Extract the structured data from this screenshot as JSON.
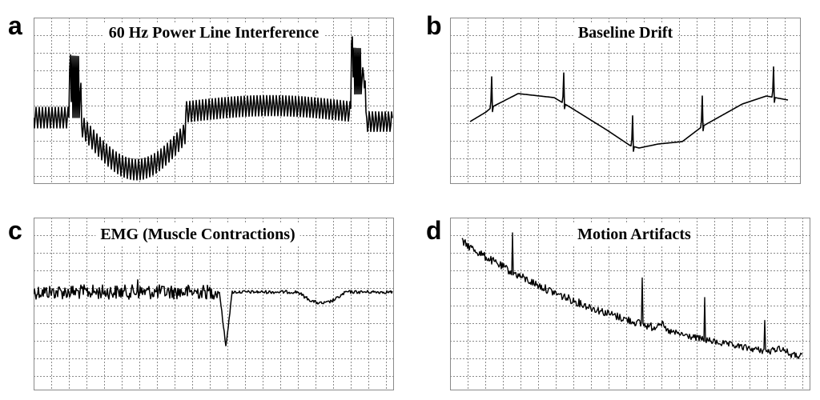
{
  "figure": {
    "grid_color": "#8a8a8a",
    "trace_color": "#000000",
    "background": "#ffffff",
    "panels": [
      {
        "letter": "a",
        "title": "60 Hz Power Line Interference",
        "artifact": "powerline"
      },
      {
        "letter": "b",
        "title": "Baseline Drift",
        "artifact": "baseline-drift"
      },
      {
        "letter": "c",
        "title": "EMG (Muscle Contractions)",
        "artifact": "emg"
      },
      {
        "letter": "d",
        "title": "Motion Artifacts",
        "artifact": "motion"
      }
    ]
  }
}
